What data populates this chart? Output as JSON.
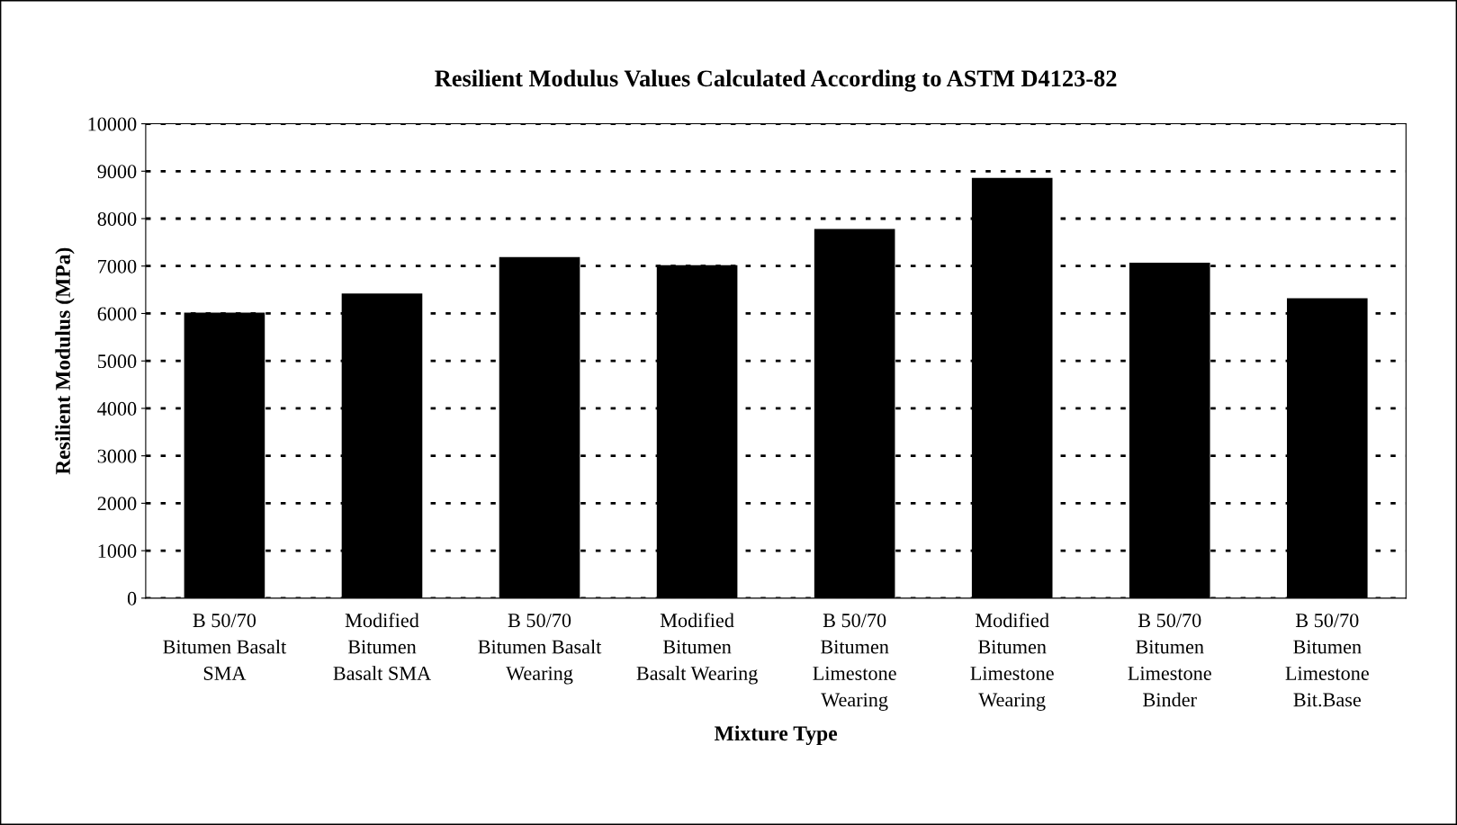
{
  "chart_data": {
    "type": "bar",
    "title": "Resilient Modulus Values Calculated According to ASTM D4123-82",
    "xlabel": "Mixture Type",
    "ylabel": "Resilient Modulus (MPa)",
    "categories": [
      "B 50/70\nBitumen Basalt\nSMA",
      "Modified\nBitumen\nBasalt SMA",
      "B 50/70\nBitumen Basalt\nWearing",
      "Modified\nBitumen\nBasalt Wearing",
      "B 50/70\nBitumen\nLimestone\nWearing",
      "Modified\nBitumen\nLimestone\nWearing",
      "B 50/70\nBitumen\nLimestone\nBinder",
      "B 50/70\nBitumen\nLimestone\nBit.Base"
    ],
    "values": [
      6000,
      6400,
      7170,
      7000,
      7760,
      8840,
      7050,
      6300
    ],
    "color": "#000000",
    "ylim": [
      0,
      10000
    ],
    "yticks": [
      0,
      1000,
      2000,
      3000,
      4000,
      5000,
      6000,
      7000,
      8000,
      9000,
      10000
    ],
    "grid": "y",
    "line_style": "dotted",
    "legend": false
  }
}
